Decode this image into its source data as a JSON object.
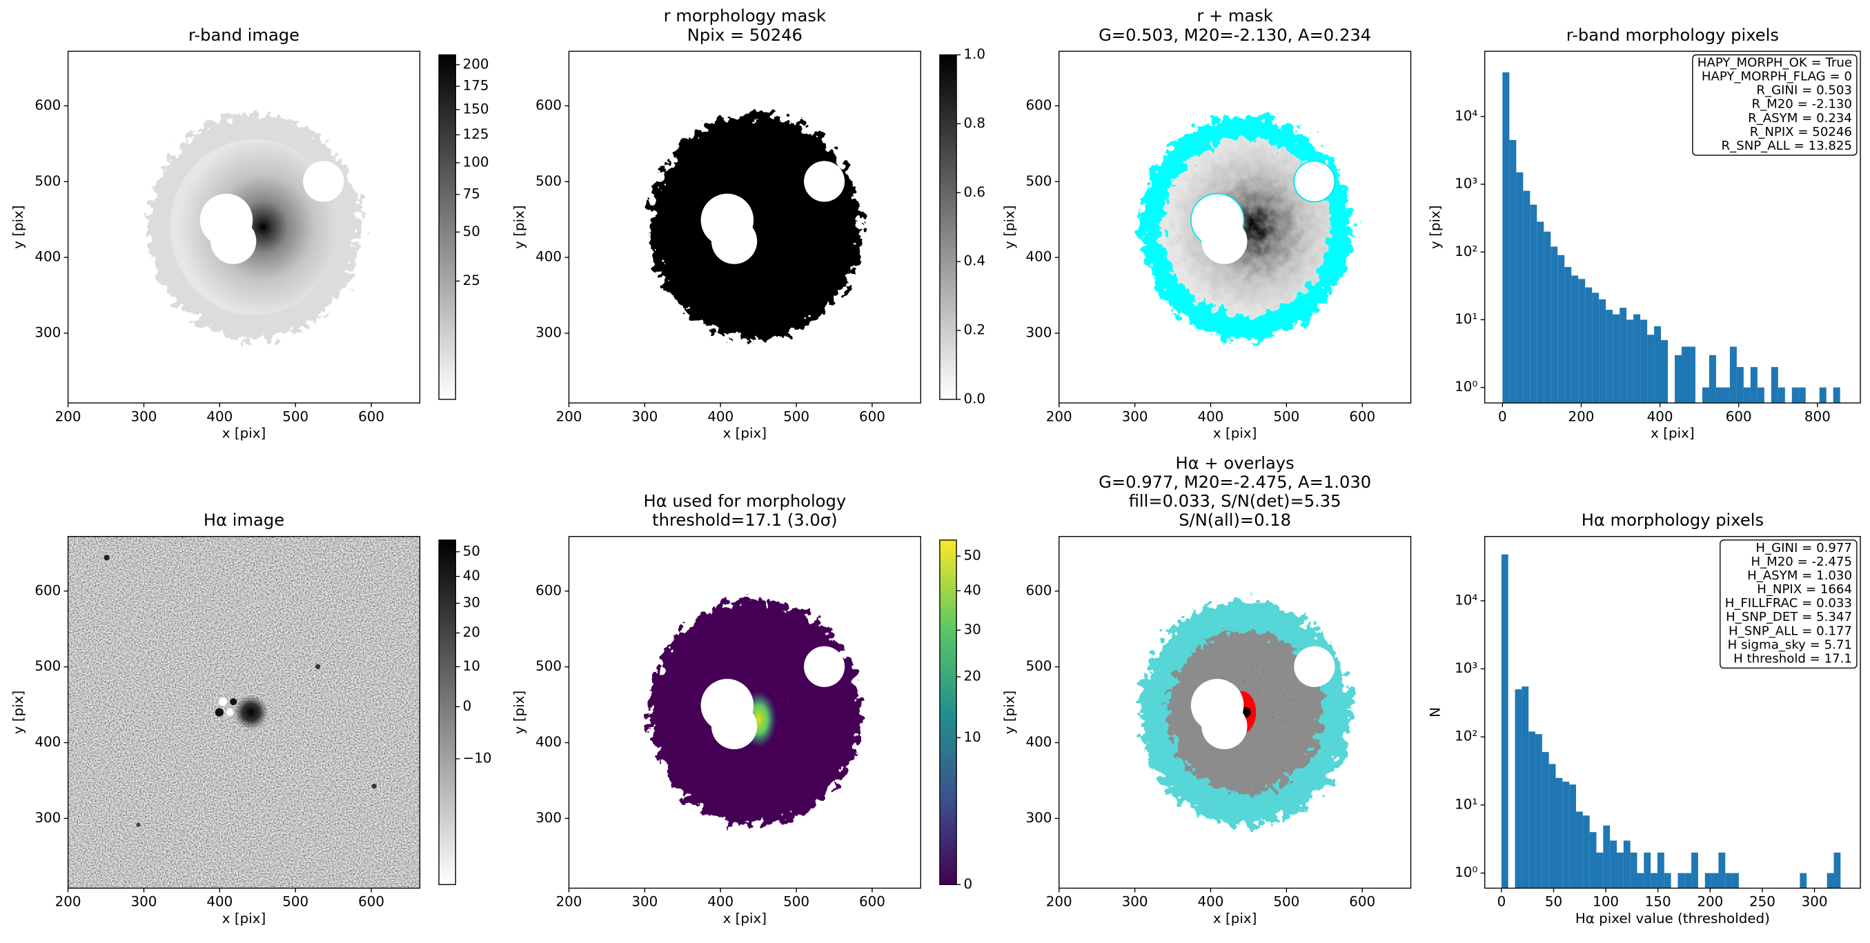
{
  "chart_data": [
    {
      "type": "image",
      "title": [
        "r-band image"
      ],
      "xlabel": "x [pix]",
      "ylabel": "y [pix]",
      "xlim": [
        200,
        664
      ],
      "ylim": [
        208,
        672
      ],
      "xticks": [
        200,
        300,
        400,
        500,
        600
      ],
      "yticks": [
        300,
        400,
        500,
        600
      ],
      "colorbar": {
        "colormap": "gray_r",
        "scale": "sqrt",
        "clim": [
          0,
          212
        ],
        "ticks": [
          25,
          50,
          75,
          100,
          125,
          150,
          175,
          200
        ]
      }
    },
    {
      "type": "image",
      "title": [
        "r morphology mask",
        "Npix = 50246"
      ],
      "xlabel": "x [pix]",
      "ylabel": "y [pix]",
      "xlim": [
        200,
        664
      ],
      "ylim": [
        208,
        672
      ],
      "xticks": [
        200,
        300,
        400,
        500,
        600
      ],
      "yticks": [
        300,
        400,
        500,
        600
      ],
      "colorbar": {
        "colormap": "gray_r",
        "scale": "linear",
        "clim": [
          0,
          1
        ],
        "ticks": [
          {
            "value": 0,
            "label": "0.0"
          },
          0.2,
          0.4,
          0.6,
          0.8,
          {
            "value": 1,
            "label": "1.0"
          }
        ]
      }
    },
    {
      "type": "image",
      "title": [
        "r + mask",
        "G=0.503, M20=-2.130, A=0.234"
      ],
      "xlabel": "x [pix]",
      "ylabel": "y [pix]",
      "xlim": [
        200,
        664
      ],
      "ylim": [
        208,
        672
      ],
      "xticks": [
        200,
        300,
        400,
        500,
        600
      ],
      "yticks": [
        300,
        400,
        500,
        600
      ]
    },
    {
      "type": "histogram",
      "title": [
        "r-band morphology pixels"
      ],
      "xlabel": "x [pix]",
      "ylabel": "y [pix]",
      "xlim": [
        -45,
        909
      ],
      "ylim": [
        0.59,
        92000
      ],
      "log_y": true,
      "color": "#1f77b4",
      "xticks": [
        0,
        200,
        400,
        600,
        800
      ],
      "yticks": [
        {
          "value": 1,
          "label": "10⁰"
        },
        {
          "value": 10,
          "label": "10¹"
        },
        {
          "value": 100,
          "label": "10²"
        },
        {
          "value": 1000,
          "label": "10³"
        },
        {
          "value": 10000,
          "label": "10⁴"
        }
      ],
      "bins": [
        0,
        17.5,
        35,
        52.5,
        70,
        87.5,
        105,
        122.5,
        140,
        157.5,
        175,
        192.5,
        210,
        227.5,
        245,
        262.5,
        280,
        297.5,
        315,
        332.5,
        350,
        367.5,
        385,
        402.5,
        420,
        437.5,
        455,
        472.5,
        490,
        507.5,
        525,
        542.5,
        560,
        577.5,
        595,
        612.5,
        630,
        647.5,
        665,
        682.5,
        700,
        717.5,
        735,
        752.5,
        770,
        787.5,
        805,
        822.5,
        840,
        857.5,
        875
      ],
      "values": [
        45000,
        4500,
        1500,
        800,
        500,
        280,
        200,
        120,
        90,
        60,
        45,
        40,
        30,
        25,
        20,
        14,
        12,
        15,
        10,
        12,
        10,
        6,
        8,
        5,
        0,
        3,
        4,
        4,
        0,
        1,
        3,
        1,
        1,
        4,
        2,
        1,
        2,
        1,
        0,
        2,
        1,
        0,
        1,
        1,
        0,
        0,
        1,
        0,
        1,
        0
      ],
      "stats": [
        "HAPY_MORPH_OK = True",
        "HAPY_MORPH_FLAG = 0",
        "R_GINI = 0.503",
        "R_M20 = -2.130",
        "R_ASYM = 0.234",
        "R_NPIX = 50246",
        "R_SNP_ALL = 13.825"
      ]
    },
    {
      "type": "image",
      "title": [
        "Hα image"
      ],
      "xlabel": "x [pix]",
      "ylabel": "y [pix]",
      "xlim": [
        200,
        664
      ],
      "ylim": [
        208,
        672
      ],
      "xticks": [
        200,
        300,
        400,
        500,
        600
      ],
      "yticks": [
        300,
        400,
        500,
        600
      ],
      "colorbar": {
        "colormap": "gray_r",
        "scale": "sqrt",
        "clim": [
          -20,
          55
        ],
        "ticks": [
          {
            "value": -10,
            "label": "−10"
          },
          0,
          10,
          20,
          30,
          40,
          50
        ]
      }
    },
    {
      "type": "image",
      "title": [
        "Hα used for morphology",
        "threshold=17.1 (3.0σ)"
      ],
      "xlabel": "x [pix]",
      "ylabel": "y [pix]",
      "xlim": [
        200,
        664
      ],
      "ylim": [
        208,
        672
      ],
      "xticks": [
        200,
        300,
        400,
        500,
        600
      ],
      "yticks": [
        300,
        400,
        500,
        600
      ],
      "colorbar": {
        "colormap": "viridis",
        "scale": "sqrt",
        "clim": [
          0,
          55
        ],
        "ticks": [
          0,
          10,
          20,
          30,
          40,
          50
        ]
      }
    },
    {
      "type": "image",
      "title": [
        "Hα + overlays",
        "G=0.977, M20=-2.475, A=1.030",
        "fill=0.033, S/N(det)=5.35",
        "S/N(all)=0.18"
      ],
      "xlabel": "x [pix]",
      "ylabel": "y [pix]",
      "xlim": [
        200,
        664
      ],
      "ylim": [
        208,
        672
      ],
      "xticks": [
        200,
        300,
        400,
        500,
        600
      ],
      "yticks": [
        300,
        400,
        500,
        600
      ]
    },
    {
      "type": "histogram",
      "title": [
        "Hα morphology pixels"
      ],
      "xlabel": "Hα pixel value (thresholded)",
      "ylabel": "N",
      "xlim": [
        -16,
        344
      ],
      "ylim": [
        0.6,
        88000
      ],
      "log_y": true,
      "color": "#1f77b4",
      "xticks": [
        0,
        50,
        100,
        150,
        200,
        250,
        300
      ],
      "yticks": [
        {
          "value": 1,
          "label": "10⁰"
        },
        {
          "value": 10,
          "label": "10¹"
        },
        {
          "value": 100,
          "label": "10²"
        },
        {
          "value": 1000,
          "label": "10³"
        },
        {
          "value": 10000,
          "label": "10⁴"
        }
      ],
      "bins": [
        0,
        6.5,
        13,
        19.5,
        26,
        32.5,
        39,
        45.5,
        52,
        58.5,
        65,
        71.5,
        78,
        84.5,
        91,
        97.5,
        104,
        110.5,
        117,
        123.5,
        130,
        136.5,
        143,
        149.5,
        156,
        162.5,
        169,
        175.5,
        182,
        188.5,
        195,
        201.5,
        208,
        214.5,
        221,
        227.5,
        234,
        240.5,
        247,
        253.5,
        260,
        266.5,
        273,
        279.5,
        286,
        292.5,
        299,
        305.5,
        312,
        318.5,
        325
      ],
      "values": [
        48000,
        0,
        500,
        550,
        120,
        110,
        60,
        40,
        25,
        22,
        20,
        8,
        7,
        4,
        2,
        5,
        3,
        2,
        3,
        2,
        1,
        2,
        1,
        2,
        1,
        0,
        1,
        1,
        2,
        0,
        1,
        1,
        2,
        1,
        1,
        0,
        0,
        0,
        0,
        0,
        0,
        0,
        0,
        0,
        1,
        0,
        0,
        0,
        1,
        2
      ],
      "stats": [
        "H_GINI = 0.977",
        "H_M20 = -2.475",
        "H_ASYM = 1.030",
        "H_NPIX = 1664",
        "H_FILLFRAC = 0.033",
        "H_SNP_DET = 5.347",
        "H_SNP_ALL = 0.177",
        "H sigma_sky = 5.71",
        "H threshold = 17.1"
      ]
    }
  ]
}
